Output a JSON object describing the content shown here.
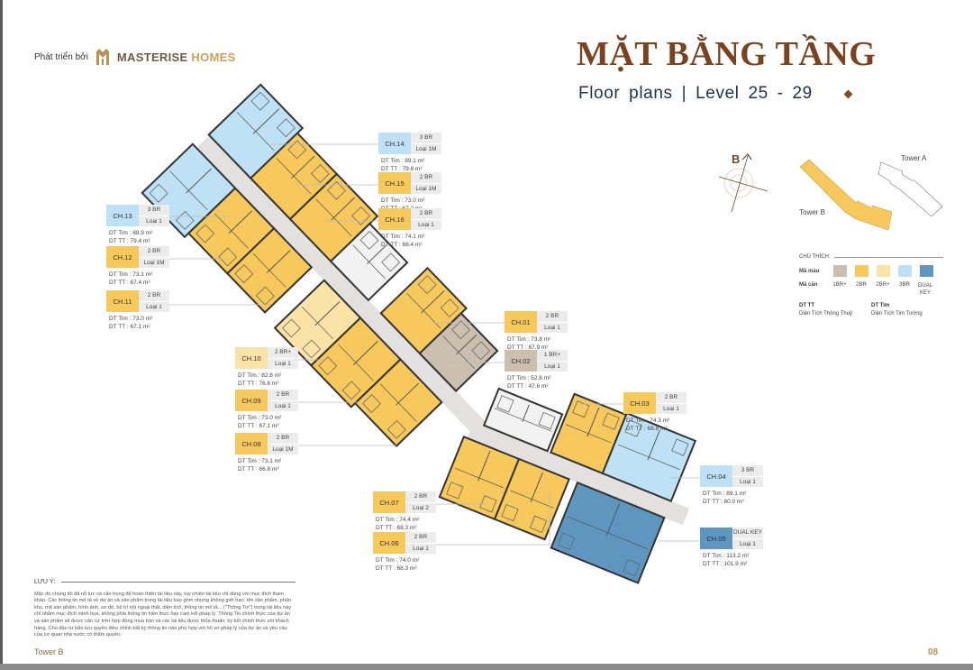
{
  "header": {
    "developer_label": "Phát triển bởi",
    "brand_part1": "MASTERISE",
    "brand_part2": "HOMES",
    "title": "MẶT BẰNG TẦNG",
    "subtitle_left": "Floor plans",
    "subtitle_sep": "|",
    "subtitle_right": "Level 25 - 29"
  },
  "keymap": {
    "compass_label": "B",
    "tower_a": "Tower A",
    "tower_b": "Tower B"
  },
  "legend": {
    "title": "CHÚ THÍCH:",
    "color_row_label": "Mã màu",
    "unit_row_label": "Mã căn",
    "types": [
      {
        "label": "1BR+",
        "color": "#cbbfb0"
      },
      {
        "label": "2BR",
        "color": "#f7c95c"
      },
      {
        "label": "2BR+",
        "color": "#fbe3a8"
      },
      {
        "label": "3BR",
        "color": "#bfe1f5"
      },
      {
        "label": "DUAL KEY",
        "color": "#5e96c0"
      }
    ],
    "def1_abbr": "DT TT",
    "def1_text": "Diện Tích Thông Thuỷ",
    "def2_abbr": "DT Tim",
    "def2_text": "Diện Tích Tim Tường"
  },
  "units": [
    {
      "code": "CH.01",
      "type": "2 BR",
      "variant": "Loại 1",
      "dt_tim": "DT Tim : 73.8 m²",
      "dt_tt": "DT TT   : 67.9 m²",
      "color": "#f7c95c"
    },
    {
      "code": "CH.02",
      "type": "1 BR+",
      "variant": "Loại 1",
      "dt_tim": "DT Tim : 52.8 m²",
      "dt_tt": "DT TT   : 47.6 m²",
      "color": "#cbbfb0"
    },
    {
      "code": "CH.03",
      "type": "2 BR",
      "variant": "Loại 1",
      "dt_tim": "DT Tim : 74.3 m²",
      "dt_tt": "DT TT   : 68.8 m²",
      "color": "#f7c95c"
    },
    {
      "code": "CH.04",
      "type": "3 BR",
      "variant": "Loại 1",
      "dt_tim": "DT Tim : 89.1 m²",
      "dt_tt": "DT TT   : 80.0 m²",
      "color": "#bfe1f5"
    },
    {
      "code": "CH.05",
      "type": "DUAL KEY",
      "variant": "Loại 1",
      "dt_tim": "DT Tim : 113.2 m²",
      "dt_tt": "DT TT   : 101.9 m²",
      "color": "#5e96c0"
    },
    {
      "code": "CH.06",
      "type": "2 BR",
      "variant": "Loại 1",
      "dt_tim": "DT Tim : 74.0 m²",
      "dt_tt": "DT TT   : 68.3 m²",
      "color": "#f7c95c"
    },
    {
      "code": "CH.07",
      "type": "2 BR",
      "variant": "Loại 2",
      "dt_tim": "DT Tim : 74.4 m²",
      "dt_tt": "DT TT   : 68.3 m²",
      "color": "#f7c95c"
    },
    {
      "code": "CH.08",
      "type": "2 BR",
      "variant": "Loại 1M",
      "dt_tim": "DT Tim : 73.1 m²",
      "dt_tt": "DT TT   : 66.8 m²",
      "color": "#f7c95c"
    },
    {
      "code": "CH.09",
      "type": "2 BR",
      "variant": "Loại 1",
      "dt_tim": "DT Tim : 73.0 m²",
      "dt_tt": "DT TT   : 67.1 m²",
      "color": "#f7c95c"
    },
    {
      "code": "CH.10",
      "type": "2 BR+",
      "variant": "Loại 1",
      "dt_tim": "DT Tim : 82.8 m²",
      "dt_tt": "DT TT   : 76.6 m²",
      "color": "#fbe3a8"
    },
    {
      "code": "CH.11",
      "type": "2 BR",
      "variant": "Loại 1",
      "dt_tim": "DT Tim : 73.0 m²",
      "dt_tt": "DT TT   : 67.1 m²",
      "color": "#f7c95c"
    },
    {
      "code": "CH.12",
      "type": "2 BR",
      "variant": "Loại 1M",
      "dt_tim": "DT Tim : 73.1 m²",
      "dt_tt": "DT TT   : 67.4 m²",
      "color": "#f7c95c"
    },
    {
      "code": "CH.13",
      "type": "3 BR",
      "variant": "Loại 1",
      "dt_tim": "DT Tim : 88.9 m²",
      "dt_tt": "DT TT   : 79.4 m²",
      "color": "#bfe1f5"
    },
    {
      "code": "CH.14",
      "type": "3 BR",
      "variant": "Loại 1M",
      "dt_tim": "DT Tim : 89.1 m²",
      "dt_tt": "DT TT   : 79.8 m²",
      "color": "#bfe1f5"
    },
    {
      "code": "CH.15",
      "type": "2 BR",
      "variant": "Loại 1M",
      "dt_tim": "DT Tim : 73.0 m²",
      "dt_tt": "DT TT   : 67.2 m²",
      "color": "#f7c95c"
    },
    {
      "code": "CH.16",
      "type": "2 BR",
      "variant": "Loại 1",
      "dt_tim": "DT Tim : 74.1 m²",
      "dt_tt": "DT TT   : 68.4 m²",
      "color": "#f7c95c"
    }
  ],
  "note": {
    "title": "LƯU Ý:",
    "text": "Mặc dù chúng tôi đã nỗ lực và cẩn trọng để hoàn thiện tài liệu này, tuy nhiên tài liệu chỉ dùng với mục đích tham khảo. Các thông tin mô tả về dự án và sản phẩm trong tài liệu bao gồm nhưng không giới hạn: tên sản phẩm, phân khu, mã sản phẩm, hình ảnh, sơ đồ, bố trí nội ngoại thất, diện tích, thông tin mô tả... (\"Thông Tin\") trong tài liệu này chỉ nhằm mục đích minh họa, không phải thông tin hiện thực hay cam kết pháp lý. Thông Tin chính thức của dự án và sản phẩm sẽ được căn cứ trên hợp đồng mua bán và các tài liệu được thỏa thuận, ký kết chính thức với khách hàng. Chủ đầu tư bảo lưu quyền điều chỉnh bất kỳ thông tin nào phù hợp với hồ sơ pháp lý của dự án và yêu cầu của cơ quan nhà nước có thẩm quyền."
  },
  "footer": {
    "tower": "Tower B",
    "page": "08"
  }
}
